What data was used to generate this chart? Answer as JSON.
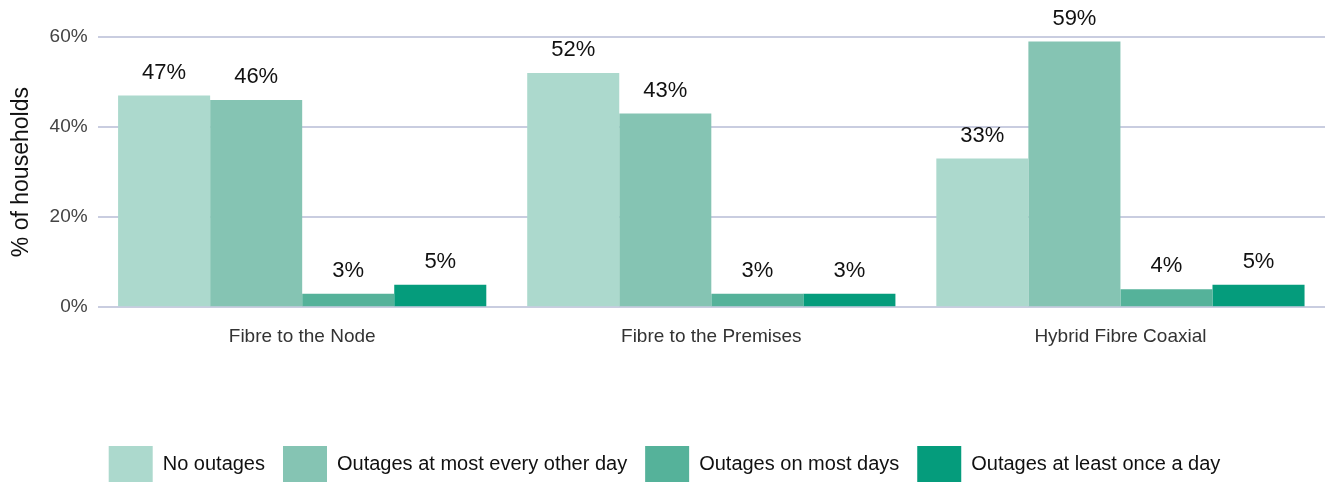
{
  "chart_data": {
    "type": "bar",
    "ylabel": "% of households",
    "categories": [
      "Fibre to the Node",
      "Fibre to the Premises",
      "Hybrid Fibre Coaxial"
    ],
    "series": [
      {
        "name": "No outages",
        "color": "#acd9cd",
        "values": [
          47,
          52,
          33
        ],
        "value_labels": [
          "47%",
          "52%",
          "33%"
        ]
      },
      {
        "name": "Outages at most every other day",
        "color": "#85c4b3",
        "values": [
          46,
          43,
          59
        ],
        "value_labels": [
          "46%",
          "43%",
          "59%"
        ]
      },
      {
        "name": "Outages on most days",
        "color": "#55b29a",
        "values": [
          3,
          3,
          4
        ],
        "value_labels": [
          "3%",
          "3%",
          "4%"
        ]
      },
      {
        "name": "Outages at least once a day",
        "color": "#059c7c",
        "values": [
          5,
          3,
          5
        ],
        "value_labels": [
          "5%",
          "3%",
          "5%"
        ]
      }
    ],
    "ylim": [
      0,
      60
    ],
    "yticks": [
      {
        "value": 0,
        "label": "0%"
      },
      {
        "value": 20,
        "label": "20%"
      },
      {
        "value": 40,
        "label": "40%"
      },
      {
        "value": 60,
        "label": "60%"
      }
    ],
    "grid": "y",
    "legend": "bottom"
  }
}
